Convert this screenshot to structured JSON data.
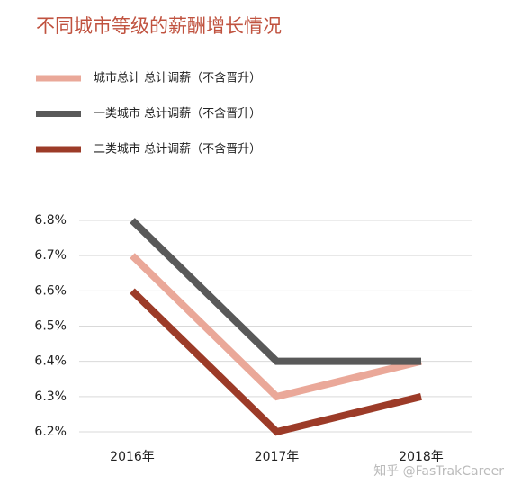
{
  "chart_data": {
    "type": "line",
    "title": "不同城市等级的薪酬增长情况",
    "categories": [
      "2016年",
      "2017年",
      "2018年"
    ],
    "series": [
      {
        "name": "城市总计 总计调薪（不含晋升）",
        "color": "#eaa899",
        "values": [
          6.7,
          6.3,
          6.4
        ]
      },
      {
        "name": "一类城市 总计调薪（不含晋升）",
        "color": "#595959",
        "values": [
          6.8,
          6.4,
          6.4
        ]
      },
      {
        "name": "二类城市 总计调薪（不含晋升）",
        "color": "#9c3b28",
        "values": [
          6.6,
          6.2,
          6.3
        ]
      }
    ],
    "ylim": [
      6.2,
      6.8
    ],
    "yticks": [
      {
        "value": 6.2,
        "label": "6.2%"
      },
      {
        "value": 6.3,
        "label": "6.3%"
      },
      {
        "value": 6.4,
        "label": "6.4%"
      },
      {
        "value": 6.5,
        "label": "6.5%"
      },
      {
        "value": 6.6,
        "label": "6.6%"
      },
      {
        "value": 6.7,
        "label": "6.7%"
      },
      {
        "value": 6.8,
        "label": "6.8%"
      }
    ],
    "grid": true,
    "watermark": "知乎 @FasTrakCareer"
  }
}
